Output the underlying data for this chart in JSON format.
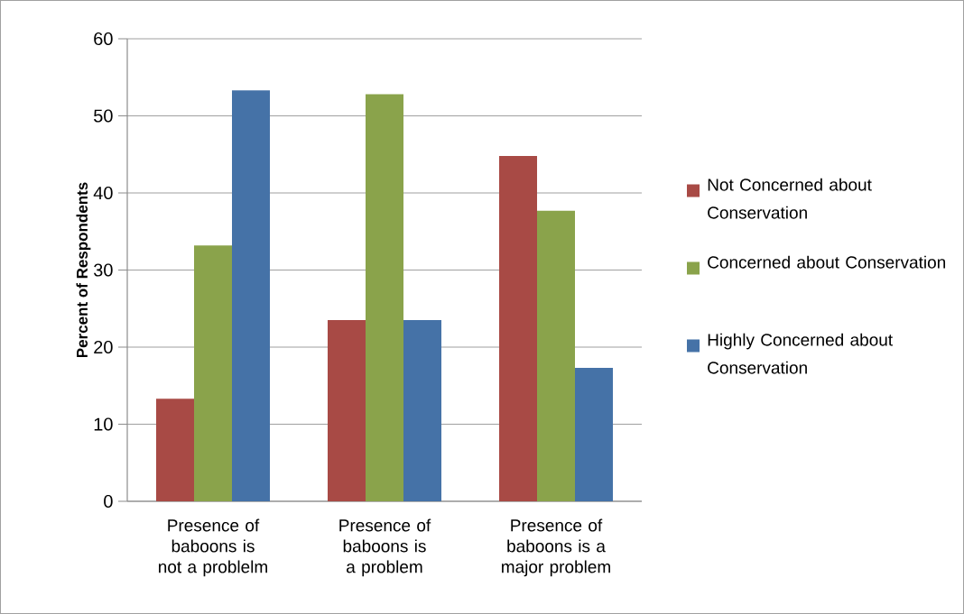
{
  "chart_data": {
    "type": "bar",
    "ylabel": "Percent of Respondents",
    "categories": [
      "Presence of baboons is not a problelm",
      "Presence of baboons is a problem",
      "Presence of baboons is a major problem"
    ],
    "series": [
      {
        "name": "Not Concerned about Conservation",
        "color": "#a84a45",
        "values": [
          13.3,
          23.5,
          44.8
        ]
      },
      {
        "name": "Concerned about Conservation",
        "color": "#8aa34b",
        "values": [
          33.2,
          52.8,
          37.7
        ]
      },
      {
        "name": "Highly Concerned about Conservation",
        "color": "#4572a7",
        "values": [
          53.3,
          23.5,
          17.3
        ]
      }
    ],
    "ylim": [
      0,
      60
    ],
    "yticks": [
      0,
      10,
      20,
      30,
      40,
      50,
      60
    ],
    "grid": "y",
    "legend": "right"
  }
}
